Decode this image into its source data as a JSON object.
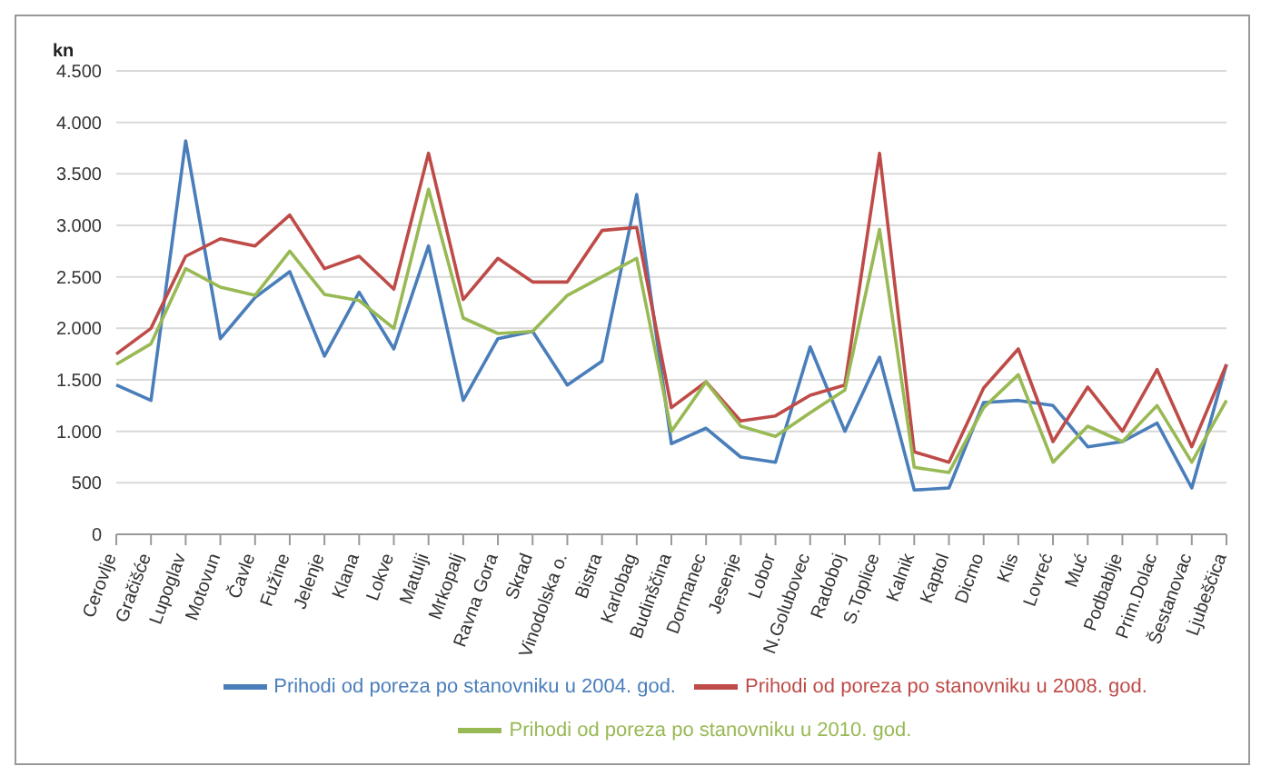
{
  "chart_data": {
    "type": "line",
    "ylabel": "kn",
    "categories": [
      "Cerovlje",
      "Gračišće",
      "Lupoglav",
      "Motovun",
      "Čavle",
      "Fužine",
      "Jelenje",
      "Klana",
      "Lokve",
      "Matulji",
      "Mrkopalj",
      "Ravna Gora",
      "Skrad",
      "Vinodolska o.",
      "Bistra",
      "Karlobag",
      "Budinščina",
      "Dormanec",
      "Jesenje",
      "Lobor",
      "N.Golubovec",
      "Radoboj",
      "S.Toplice",
      "Kalnik",
      "Kaptol",
      "Dicmo",
      "Klis",
      "Lovreć",
      "Muć",
      "Podbablje",
      "Prim.Dolac",
      "Šestanovac",
      "Ljubeščica"
    ],
    "series": [
      {
        "name": "Prihodi od poreza po stanovniku u 2004. god.",
        "color": "#4a7ebb",
        "values": [
          1450,
          1300,
          3820,
          1900,
          2300,
          2550,
          1730,
          2350,
          1800,
          2800,
          1300,
          1900,
          1970,
          1450,
          1680,
          3300,
          880,
          1030,
          750,
          700,
          1820,
          1000,
          1720,
          430,
          450,
          1280,
          1300,
          1250,
          850,
          900,
          1080,
          450,
          1650
        ]
      },
      {
        "name": "Prihodi od poreza po stanovniku u 2008. god.",
        "color": "#be4b48",
        "values": [
          1750,
          2000,
          2700,
          2870,
          2800,
          3100,
          2580,
          2700,
          2380,
          3700,
          2280,
          2680,
          2450,
          2450,
          2950,
          2980,
          1230,
          1480,
          1100,
          1150,
          1350,
          1450,
          3700,
          800,
          700,
          1420,
          1800,
          900,
          1430,
          1000,
          1600,
          850,
          1650
        ]
      },
      {
        "name": "Prihodi od poreza po stanovniku u 2010. god.",
        "color": "#98b954",
        "values": [
          1650,
          1850,
          2580,
          2400,
          2320,
          2750,
          2330,
          2270,
          2000,
          3350,
          2100,
          1950,
          1970,
          2320,
          2500,
          2680,
          1000,
          1480,
          1050,
          950,
          1180,
          1400,
          2960,
          650,
          600,
          1230,
          1550,
          700,
          1050,
          900,
          1250,
          700,
          1300
        ]
      }
    ],
    "ylim": [
      0,
      4500
    ],
    "yticks": [
      0,
      500,
      {
        "value": 1000,
        "label": "1.000"
      },
      {
        "value": 1500,
        "label": "1.500"
      },
      {
        "value": 2000,
        "label": "2.000"
      },
      {
        "value": 2500,
        "label": "2.500"
      },
      {
        "value": 3000,
        "label": "3.000"
      },
      {
        "value": 3500,
        "label": "3.500"
      },
      {
        "value": 4000,
        "label": "4.000"
      },
      {
        "value": 4500,
        "label": "4.500"
      }
    ],
    "grid": "y",
    "legend": "bottom",
    "marker": "none",
    "line_style": "solid"
  }
}
